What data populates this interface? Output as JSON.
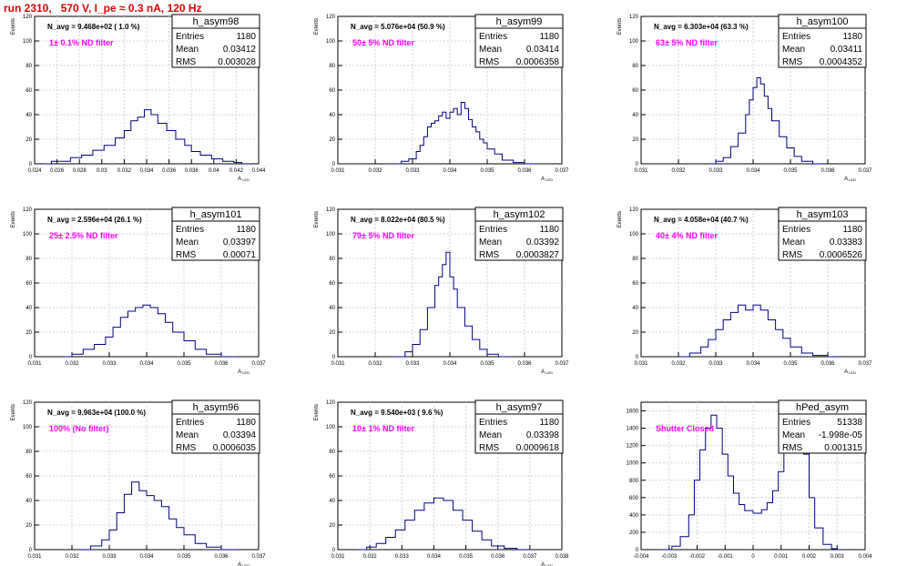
{
  "page_title": "run 2310,   570 V, I_pe ≈ 0.3 nA, 120 Hz",
  "colors": {
    "line": "#000080",
    "grid": "#d4d4d4",
    "filter_text": "#ff00ff",
    "title": "#e00000"
  },
  "chart_data": [
    {
      "type": "histogram",
      "name": "h_asym98",
      "ylabel": "Events",
      "xlabel": "A_LED",
      "xlim": [
        0.024,
        0.044
      ],
      "ylim": [
        0,
        120
      ],
      "xticks": [
        "0.024",
        "0.026",
        "0.028",
        "0.03",
        "0.032",
        "0.034",
        "0.036",
        "0.038",
        "0.04",
        "0.042",
        "0.044"
      ],
      "yticks": [
        "0",
        "20",
        "40",
        "60",
        "80",
        "100",
        "120"
      ],
      "grid": true,
      "stats": {
        "entries": "1180",
        "mean": "0.03412",
        "rms": "0.003028"
      },
      "n_avg": "N_avg = 9.468e+02 ( 1.0 %)",
      "filter": "1± 0.1% ND filter",
      "bins": [
        [
          0.0248,
          0
        ],
        [
          0.0255,
          2
        ],
        [
          0.0262,
          2
        ],
        [
          0.0272,
          5
        ],
        [
          0.0282,
          7
        ],
        [
          0.0292,
          11
        ],
        [
          0.0302,
          15
        ],
        [
          0.0312,
          21
        ],
        [
          0.032,
          27
        ],
        [
          0.0326,
          35
        ],
        [
          0.0332,
          38
        ],
        [
          0.0338,
          44
        ],
        [
          0.0344,
          40
        ],
        [
          0.035,
          33
        ],
        [
          0.0358,
          27
        ],
        [
          0.0366,
          20
        ],
        [
          0.0374,
          15
        ],
        [
          0.038,
          10
        ],
        [
          0.0388,
          7
        ],
        [
          0.0398,
          4
        ],
        [
          0.0408,
          2
        ],
        [
          0.0418,
          1
        ],
        [
          0.0425,
          0
        ]
      ]
    },
    {
      "type": "histogram",
      "name": "h_asym99",
      "ylabel": "Events",
      "xlabel": "A_LED",
      "xlim": [
        0.031,
        0.037
      ],
      "ylim": [
        0,
        120
      ],
      "xticks": [
        "0.031",
        "0.032",
        "0.033",
        "0.034",
        "0.035",
        "0.036",
        "0.037"
      ],
      "yticks": [
        "0",
        "20",
        "40",
        "60",
        "80",
        "100",
        "120"
      ],
      "grid": true,
      "stats": {
        "entries": "1180",
        "mean": "0.03414",
        "rms": "0.0006358"
      },
      "n_avg": "N_avg = 5.076e+04 (50.9 %)",
      "filter": "50± 5% ND filter",
      "bins": [
        [
          0.0325,
          0
        ],
        [
          0.0327,
          2
        ],
        [
          0.0329,
          4
        ],
        [
          0.0331,
          10
        ],
        [
          0.0332,
          15
        ],
        [
          0.0333,
          22
        ],
        [
          0.0334,
          30
        ],
        [
          0.0335,
          33
        ],
        [
          0.0336,
          35
        ],
        [
          0.0337,
          39
        ],
        [
          0.0338,
          42
        ],
        [
          0.0339,
          37
        ],
        [
          0.034,
          42
        ],
        [
          0.0341,
          45
        ],
        [
          0.0342,
          40
        ],
        [
          0.0343,
          50
        ],
        [
          0.0344,
          45
        ],
        [
          0.0345,
          36
        ],
        [
          0.0346,
          30
        ],
        [
          0.0347,
          26
        ],
        [
          0.0348,
          20
        ],
        [
          0.0349,
          17
        ],
        [
          0.035,
          12
        ],
        [
          0.0352,
          8
        ],
        [
          0.0354,
          3
        ],
        [
          0.0357,
          1
        ],
        [
          0.036,
          0
        ]
      ]
    },
    {
      "type": "histogram",
      "name": "h_asym100",
      "ylabel": "Events",
      "xlabel": "A_LED",
      "xlim": [
        0.031,
        0.037
      ],
      "ylim": [
        0,
        120
      ],
      "xticks": [
        "0.031",
        "0.032",
        "0.033",
        "0.034",
        "0.035",
        "0.036",
        "0.037"
      ],
      "yticks": [
        "0",
        "20",
        "40",
        "60",
        "80",
        "100",
        "120"
      ],
      "grid": true,
      "stats": {
        "entries": "1180",
        "mean": "0.03411",
        "rms": "0.0004352"
      },
      "n_avg": "N_avg = 6.303e+04 (63.3 %)",
      "filter": "63± 5% ND filter",
      "bins": [
        [
          0.0328,
          0
        ],
        [
          0.033,
          2
        ],
        [
          0.0332,
          5
        ],
        [
          0.0334,
          14
        ],
        [
          0.0336,
          25
        ],
        [
          0.0338,
          40
        ],
        [
          0.0339,
          52
        ],
        [
          0.034,
          62
        ],
        [
          0.0341,
          70
        ],
        [
          0.0342,
          65
        ],
        [
          0.0343,
          55
        ],
        [
          0.0344,
          45
        ],
        [
          0.0345,
          35
        ],
        [
          0.0347,
          22
        ],
        [
          0.0349,
          13
        ],
        [
          0.0351,
          6
        ],
        [
          0.0353,
          2
        ],
        [
          0.0356,
          0
        ]
      ]
    },
    {
      "type": "histogram",
      "name": "h_asym101",
      "ylabel": "Events",
      "xlabel": "A_LED",
      "xlim": [
        0.031,
        0.037
      ],
      "ylim": [
        0,
        120
      ],
      "xticks": [
        "0.031",
        "0.032",
        "0.033",
        "0.034",
        "0.035",
        "0.036",
        "0.037"
      ],
      "yticks": [
        "0",
        "20",
        "40",
        "60",
        "80",
        "100",
        "120"
      ],
      "grid": true,
      "stats": {
        "entries": "1180",
        "mean": "0.03397",
        "rms": "0.00071"
      },
      "n_avg": "N_avg = 2.596e+04 (26.1 %)",
      "filter": "25± 2.5% ND filter",
      "bins": [
        [
          0.0318,
          0
        ],
        [
          0.032,
          2
        ],
        [
          0.0323,
          6
        ],
        [
          0.0326,
          10
        ],
        [
          0.0329,
          16
        ],
        [
          0.0331,
          24
        ],
        [
          0.0333,
          32
        ],
        [
          0.0335,
          37
        ],
        [
          0.0337,
          40
        ],
        [
          0.0339,
          42
        ],
        [
          0.0341,
          40
        ],
        [
          0.0343,
          35
        ],
        [
          0.0345,
          28
        ],
        [
          0.0347,
          20
        ],
        [
          0.035,
          13
        ],
        [
          0.0353,
          6
        ],
        [
          0.0356,
          2
        ],
        [
          0.036,
          0
        ]
      ]
    },
    {
      "type": "histogram",
      "name": "h_asym102",
      "ylabel": "Events",
      "xlabel": "A_LED",
      "xlim": [
        0.031,
        0.037
      ],
      "ylim": [
        0,
        120
      ],
      "xticks": [
        "0.031",
        "0.032",
        "0.033",
        "0.034",
        "0.035",
        "0.036",
        "0.037"
      ],
      "yticks": [
        "0",
        "20",
        "40",
        "60",
        "80",
        "100",
        "120"
      ],
      "grid": true,
      "stats": {
        "entries": "1180",
        "mean": "0.03392",
        "rms": "0.0003827"
      },
      "n_avg": "N_avg = 8.022e+04 (80.5 %)",
      "filter": "79± 5% ND filter",
      "bins": [
        [
          0.0325,
          0
        ],
        [
          0.0328,
          4
        ],
        [
          0.033,
          10
        ],
        [
          0.0332,
          22
        ],
        [
          0.0334,
          40
        ],
        [
          0.0336,
          58
        ],
        [
          0.0337,
          65
        ],
        [
          0.0338,
          75
        ],
        [
          0.0339,
          85
        ],
        [
          0.034,
          65
        ],
        [
          0.0341,
          55
        ],
        [
          0.0342,
          40
        ],
        [
          0.0344,
          25
        ],
        [
          0.0346,
          14
        ],
        [
          0.0348,
          6
        ],
        [
          0.035,
          2
        ],
        [
          0.0353,
          0
        ]
      ]
    },
    {
      "type": "histogram",
      "name": "h_asym103",
      "ylabel": "Events",
      "xlabel": "A_LED",
      "xlim": [
        0.031,
        0.037
      ],
      "ylim": [
        0,
        120
      ],
      "xticks": [
        "0.031",
        "0.032",
        "0.033",
        "0.034",
        "0.035",
        "0.036",
        "0.037"
      ],
      "yticks": [
        "0",
        "20",
        "40",
        "60",
        "80",
        "100",
        "120"
      ],
      "grid": true,
      "stats": {
        "entries": "1180",
        "mean": "0.03383",
        "rms": "0.0006526"
      },
      "n_avg": "N_avg = 4.058e+04 (40.7 %)",
      "filter": "40± 4% ND filter",
      "bins": [
        [
          0.032,
          0
        ],
        [
          0.0323,
          3
        ],
        [
          0.0326,
          8
        ],
        [
          0.0328,
          14
        ],
        [
          0.033,
          22
        ],
        [
          0.0332,
          30
        ],
        [
          0.0334,
          36
        ],
        [
          0.0336,
          42
        ],
        [
          0.0338,
          38
        ],
        [
          0.034,
          42
        ],
        [
          0.0342,
          38
        ],
        [
          0.0344,
          30
        ],
        [
          0.0346,
          22
        ],
        [
          0.0348,
          15
        ],
        [
          0.035,
          8
        ],
        [
          0.0353,
          3
        ],
        [
          0.0356,
          1
        ],
        [
          0.036,
          0
        ]
      ]
    },
    {
      "type": "histogram",
      "name": "h_asym96",
      "ylabel": "Events",
      "xlabel": "A_LED",
      "xlim": [
        0.031,
        0.037
      ],
      "ylim": [
        0,
        120
      ],
      "xticks": [
        "0.031",
        "0.032",
        "0.033",
        "0.034",
        "0.035",
        "0.036",
        "0.037"
      ],
      "yticks": [
        "0",
        "20",
        "40",
        "60",
        "80",
        "100",
        "120"
      ],
      "grid": true,
      "stats": {
        "entries": "1180",
        "mean": "0.03394",
        "rms": "0.0006035"
      },
      "n_avg": "N_avg = 9.963e+04 (100.0 %)",
      "filter": "100% (No filter)",
      "bins": [
        [
          0.0322,
          0
        ],
        [
          0.0325,
          3
        ],
        [
          0.0328,
          8
        ],
        [
          0.033,
          16
        ],
        [
          0.0332,
          30
        ],
        [
          0.0334,
          45
        ],
        [
          0.0336,
          55
        ],
        [
          0.0338,
          48
        ],
        [
          0.034,
          44
        ],
        [
          0.0342,
          40
        ],
        [
          0.0344,
          35
        ],
        [
          0.0346,
          25
        ],
        [
          0.0348,
          18
        ],
        [
          0.035,
          12
        ],
        [
          0.0353,
          5
        ],
        [
          0.0356,
          2
        ],
        [
          0.036,
          0
        ]
      ]
    },
    {
      "type": "histogram",
      "name": "h_asym97",
      "ylabel": "Events",
      "xlabel": "A_LED",
      "xlim": [
        0.031,
        0.038
      ],
      "ylim": [
        0,
        120
      ],
      "xticks": [
        "0.031",
        "0.032",
        "0.033",
        "0.034",
        "0.035",
        "0.036",
        "0.037",
        "0.038"
      ],
      "yticks": [
        "0",
        "20",
        "40",
        "60",
        "80",
        "100",
        "120"
      ],
      "grid": true,
      "stats": {
        "entries": "1180",
        "mean": "0.03398",
        "rms": "0.0009618"
      },
      "n_avg": "N_avg = 9.540e+03 ( 9.6 %)",
      "filter": "10± 1% ND filter",
      "bins": [
        [
          0.0316,
          0
        ],
        [
          0.0319,
          2
        ],
        [
          0.0322,
          5
        ],
        [
          0.0325,
          10
        ],
        [
          0.0328,
          16
        ],
        [
          0.0331,
          24
        ],
        [
          0.0334,
          32
        ],
        [
          0.0337,
          38
        ],
        [
          0.034,
          42
        ],
        [
          0.0343,
          40
        ],
        [
          0.0346,
          32
        ],
        [
          0.0349,
          24
        ],
        [
          0.0352,
          15
        ],
        [
          0.0355,
          8
        ],
        [
          0.0358,
          3
        ],
        [
          0.0362,
          1
        ],
        [
          0.0366,
          0
        ]
      ]
    },
    {
      "type": "histogram",
      "name": "hPed_asym",
      "ylabel": "",
      "xlabel": "",
      "xlim": [
        -0.004,
        0.004
      ],
      "ylim": [
        0,
        1700
      ],
      "xticks": [
        "-0.004",
        "-0.003",
        "-0.002",
        "-0.001",
        "0",
        "0.001",
        "0.002",
        "0.003",
        "0.004"
      ],
      "yticks": [
        "0",
        "200",
        "400",
        "600",
        "800",
        "1000",
        "1200",
        "1400",
        "1600"
      ],
      "grid": true,
      "stats": {
        "entries": "51338",
        "mean": "-1.998e-05",
        "rms": "0.001315"
      },
      "n_avg": "",
      "filter": "Shutter Closed",
      "bins": [
        [
          -0.0033,
          0
        ],
        [
          -0.0029,
          40
        ],
        [
          -0.0026,
          150
        ],
        [
          -0.0023,
          400
        ],
        [
          -0.0021,
          800
        ],
        [
          -0.0019,
          1150
        ],
        [
          -0.0017,
          1400
        ],
        [
          -0.0015,
          1550
        ],
        [
          -0.0013,
          1400
        ],
        [
          -0.0011,
          1100
        ],
        [
          -0.0009,
          850
        ],
        [
          -0.0007,
          650
        ],
        [
          -0.0005,
          520
        ],
        [
          -0.0003,
          450
        ],
        [
          0,
          420
        ],
        [
          0.0003,
          460
        ],
        [
          0.0005,
          540
        ],
        [
          0.0007,
          680
        ],
        [
          0.0009,
          900
        ],
        [
          0.0011,
          1150
        ],
        [
          0.0013,
          1400
        ],
        [
          0.0015,
          1620
        ],
        [
          0.0016,
          1500
        ],
        [
          0.0018,
          1100
        ],
        [
          0.002,
          600
        ],
        [
          0.0022,
          250
        ],
        [
          0.0025,
          60
        ],
        [
          0.0028,
          10
        ],
        [
          0.003,
          0
        ]
      ]
    }
  ]
}
